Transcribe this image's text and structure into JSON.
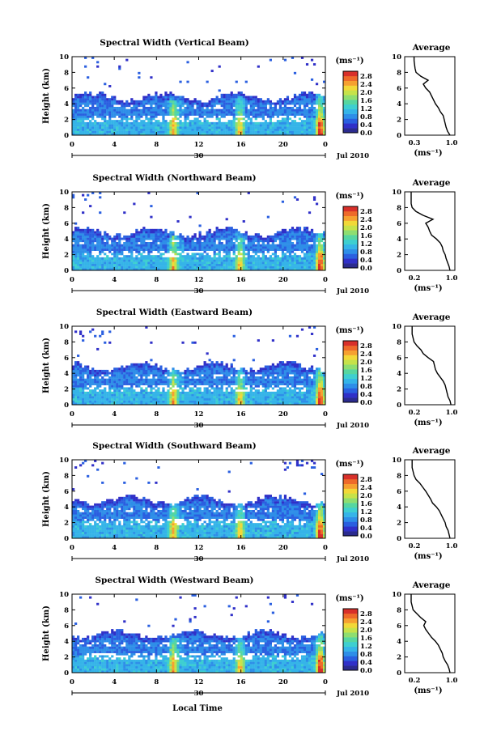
{
  "chart_data": {
    "type": "heatmap",
    "panels": [
      {
        "title": "Spectral Width (Vertical Beam)",
        "ylabel": "Height (km)",
        "colorbar_unit": "(ms⁻¹)",
        "colorbar_ticks": [
          "2.8",
          "2.4",
          "2.0",
          "1.6",
          "1.2",
          "0.8",
          "0.4",
          "0.0"
        ],
        "profile_title": "Average",
        "profile_xticks": [
          "0.3",
          "1.0"
        ],
        "profile_xlabel": "(ms⁻¹)",
        "profile": {
          "height": [
            0,
            0.5,
            1,
            1.5,
            2,
            2.5,
            3,
            3.5,
            4,
            4.5,
            5,
            5.5,
            6,
            6.5,
            7,
            7.5,
            8,
            8.5,
            9,
            9.5,
            10
          ],
          "width": [
            1.0,
            0.95,
            0.92,
            0.9,
            0.88,
            0.86,
            0.8,
            0.76,
            0.7,
            0.66,
            0.62,
            0.58,
            0.5,
            0.45,
            0.55,
            0.4,
            0.3,
            0.28,
            0.27,
            0.26,
            0.26
          ]
        }
      },
      {
        "title": "Spectral Width (Northward Beam)",
        "ylabel": "Height (km)",
        "colorbar_unit": "(ms⁻¹)",
        "colorbar_ticks": [
          "2.8",
          "2.4",
          "2.0",
          "1.6",
          "1.2",
          "0.8",
          "0.4",
          "0.0"
        ],
        "profile_title": "Average",
        "profile_xticks": [
          "0.2",
          "1.0"
        ],
        "profile_xlabel": "(ms⁻¹)",
        "profile": {
          "height": [
            0,
            0.5,
            1,
            1.5,
            2,
            2.5,
            3,
            3.5,
            4,
            4.5,
            5,
            5.5,
            6,
            6.5,
            7,
            7.5,
            8,
            8.5,
            9,
            9.5,
            10
          ],
          "width": [
            1.0,
            0.98,
            0.95,
            0.92,
            0.9,
            0.86,
            0.84,
            0.8,
            0.72,
            0.62,
            0.58,
            0.55,
            0.5,
            0.65,
            0.45,
            0.3,
            0.22,
            0.2,
            0.2,
            0.2,
            0.2
          ]
        }
      },
      {
        "title": "Spectral Width (Eastward Beam)",
        "ylabel": "Height (km)",
        "colorbar_unit": "(ms⁻¹)",
        "colorbar_ticks": [
          "2.8",
          "2.4",
          "2.0",
          "1.6",
          "1.2",
          "0.8",
          "0.4",
          "0.0"
        ],
        "profile_title": "Average",
        "profile_xticks": [
          "0.2",
          "1.0"
        ],
        "profile_xlabel": "(ms⁻¹)",
        "profile": {
          "height": [
            0,
            0.5,
            1,
            1.5,
            2,
            2.5,
            3,
            3.5,
            4,
            4.5,
            5,
            5.5,
            6,
            6.5,
            7,
            7.5,
            8,
            8.5,
            9,
            9.5,
            10
          ],
          "width": [
            1.02,
            1.0,
            0.96,
            0.94,
            0.92,
            0.9,
            0.86,
            0.8,
            0.74,
            0.7,
            0.68,
            0.66,
            0.55,
            0.45,
            0.4,
            0.32,
            0.26,
            0.24,
            0.22,
            0.22,
            0.22
          ]
        }
      },
      {
        "title": "Spectral Width (Southward Beam)",
        "ylabel": "Height (km)",
        "colorbar_unit": "(ms⁻¹)",
        "colorbar_ticks": [
          "2.8",
          "2.4",
          "2.0",
          "1.6",
          "1.2",
          "0.8",
          "0.4",
          "0.0"
        ],
        "profile_title": "Average",
        "profile_xticks": [
          "0.2",
          "1.0"
        ],
        "profile_xlabel": "(ms⁻¹)",
        "profile": {
          "height": [
            0,
            0.5,
            1,
            1.5,
            2,
            2.5,
            3,
            3.5,
            4,
            4.5,
            5,
            5.5,
            6,
            6.5,
            7,
            7.5,
            8,
            8.5,
            9,
            9.5,
            10
          ],
          "width": [
            1.0,
            0.98,
            0.96,
            0.92,
            0.9,
            0.86,
            0.82,
            0.78,
            0.72,
            0.64,
            0.6,
            0.55,
            0.5,
            0.44,
            0.38,
            0.3,
            0.26,
            0.24,
            0.22,
            0.22,
            0.22
          ]
        }
      },
      {
        "title": "Spectral Width (Westward Beam)",
        "ylabel": "Height (km)",
        "colorbar_unit": "(ms⁻¹)",
        "colorbar_ticks": [
          "2.8",
          "2.4",
          "2.0",
          "1.6",
          "1.2",
          "0.8",
          "0.4",
          "0.0"
        ],
        "profile_title": "Average",
        "profile_xticks": [
          "0.2",
          "1.0"
        ],
        "profile_xlabel": "(ms⁻¹)",
        "profile": {
          "height": [
            0,
            0.5,
            1,
            1.5,
            2,
            2.5,
            3,
            3.5,
            4,
            4.5,
            5,
            5.5,
            6,
            6.5,
            7,
            7.5,
            8,
            8.5,
            9,
            9.5,
            10
          ],
          "width": [
            1.0,
            0.98,
            0.95,
            0.9,
            0.86,
            0.84,
            0.8,
            0.76,
            0.7,
            0.62,
            0.56,
            0.5,
            0.46,
            0.5,
            0.4,
            0.32,
            0.24,
            0.22,
            0.2,
            0.2,
            0.2
          ]
        }
      }
    ],
    "x_ticks": [
      "0",
      "4",
      "8",
      "12",
      "16",
      "20",
      "0"
    ],
    "date_tick": "30",
    "date_suffix": "Jul 2010",
    "x_range": [
      0,
      24
    ],
    "y_range": [
      0,
      10
    ],
    "y_ticks": [
      "0",
      "2",
      "4",
      "6",
      "8",
      "10"
    ],
    "xlabel": "Local Time",
    "colormap": [
      "#2b2b8f",
      "#3030c8",
      "#2a5fe0",
      "#2e8ee8",
      "#35b4e8",
      "#3ecfd0",
      "#56d6a0",
      "#8ede70",
      "#c6e24a",
      "#f2d838",
      "#f6a030",
      "#ee6a2a",
      "#d8302a"
    ],
    "colorbar_range": [
      0.0,
      3.0
    ]
  }
}
